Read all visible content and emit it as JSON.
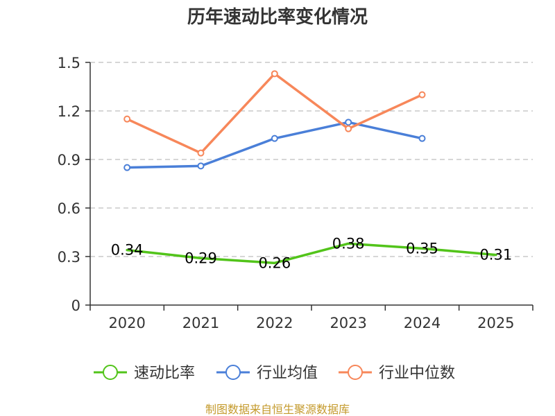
{
  "chart_data": {
    "type": "line",
    "title": "历年速动比率变化情况",
    "categories": [
      "2020",
      "2021",
      "2022",
      "2023",
      "2024",
      "2025"
    ],
    "ylim": [
      0,
      1.5
    ],
    "yticks": [
      "0",
      "0.3",
      "0.6",
      "0.9",
      "1.2",
      "1.5"
    ],
    "grid": true,
    "legend_position": "bottom",
    "series": [
      {
        "name": "速动比率",
        "color": "#52c41a",
        "marker": false,
        "values": [
          0.34,
          0.29,
          0.26,
          0.38,
          0.35,
          0.31
        ],
        "labels": [
          "0.34",
          "0.29",
          "0.26",
          "0.38",
          "0.35",
          "0.31"
        ]
      },
      {
        "name": "行业均值",
        "color": "#4a7fd8",
        "marker": true,
        "values": [
          0.85,
          0.86,
          1.03,
          1.13,
          1.03,
          null
        ]
      },
      {
        "name": "行业中位数",
        "color": "#f7875a",
        "marker": true,
        "values": [
          1.15,
          0.94,
          1.43,
          1.09,
          1.3,
          null
        ]
      }
    ],
    "source": "制图数据来自恒生聚源数据库"
  }
}
